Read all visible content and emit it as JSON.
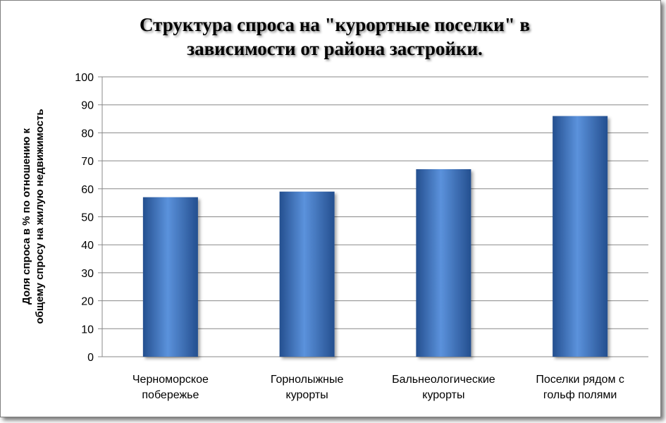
{
  "chart_data": {
    "type": "bar",
    "title_lines": [
      "Структура спроса на \"курортные поселки\" в",
      "зависимости от района застройки."
    ],
    "ylabel_lines": [
      "Доля спроса в % по отношению к",
      "общему спросу на жилую недвижимость"
    ],
    "xlabel": "",
    "categories": [
      [
        "Черноморское",
        "побережье"
      ],
      [
        "Горнолыжные",
        "курорты"
      ],
      [
        "Бальнеологические",
        "курорты"
      ],
      [
        "Поселки рядом с",
        "гольф полями"
      ]
    ],
    "values": [
      57,
      59,
      67,
      86
    ],
    "ylim": [
      0,
      100
    ],
    "yticks": [
      0,
      10,
      20,
      30,
      40,
      50,
      60,
      70,
      80,
      90,
      100
    ],
    "grid": true,
    "legend": "none",
    "bar_color": "#3f78c8",
    "bar_color_dark": "#244f8f",
    "bar_color_light": "#5b92dc"
  }
}
